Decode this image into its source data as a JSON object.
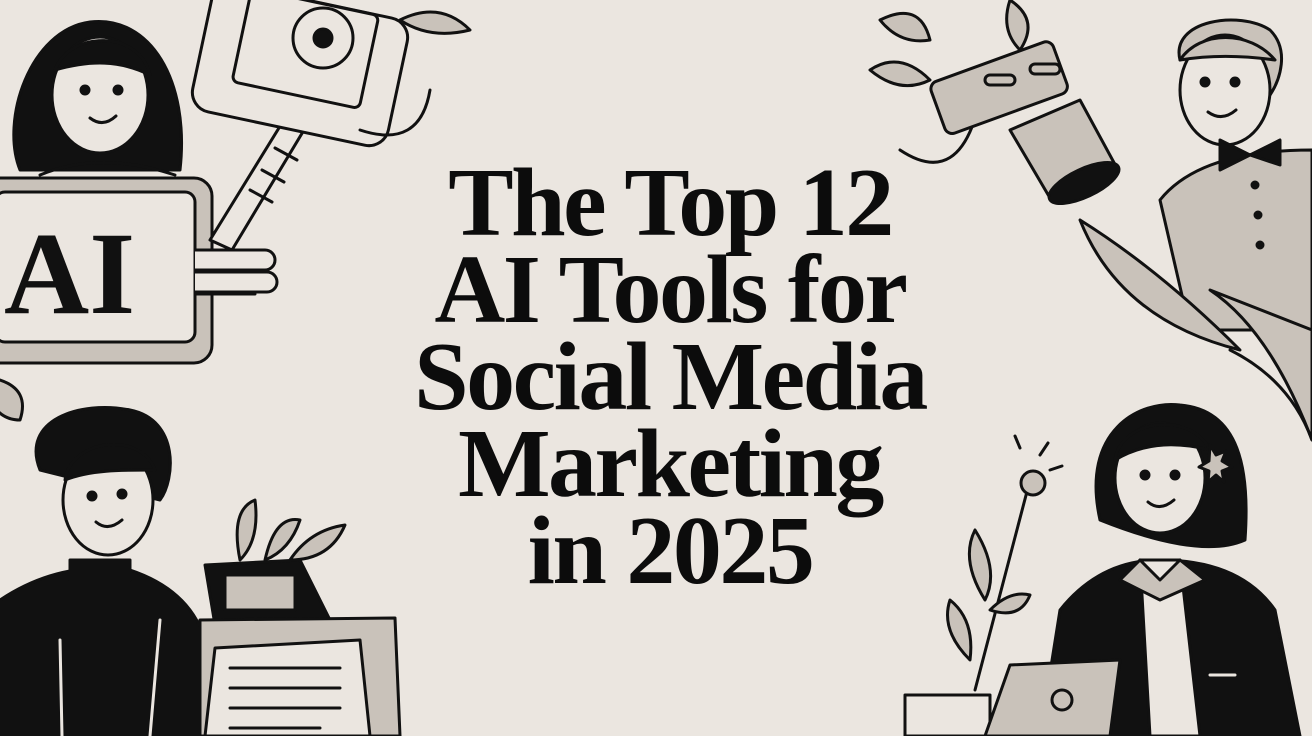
{
  "title": {
    "lines": [
      "The Top 12",
      "AI Tools for",
      "Social Media",
      "Marketing",
      "in 2025"
    ]
  },
  "illustration": {
    "sign_text": "AI"
  },
  "colors": {
    "background": "#ebe6e0",
    "ink": "#0c0c0c",
    "accent_grey": "#c9c2ba"
  }
}
